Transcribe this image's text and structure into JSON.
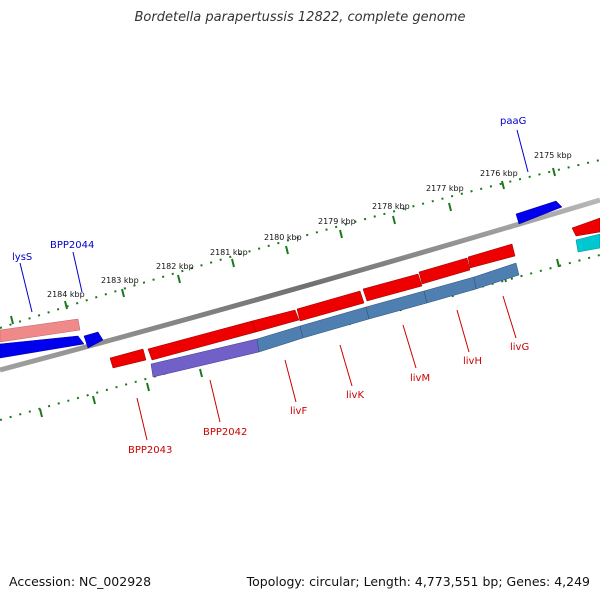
{
  "title": "Bordetella parapertussis 12822, complete genome",
  "footer": {
    "accession": "Accession: NC_002928",
    "summary": "Topology: circular; Length: 4,773,551 bp; Genes: 4,249"
  },
  "colors": {
    "backbone": "#808080",
    "forward_gene": "#0000ee",
    "forward_gene_faded": "#f08080",
    "reverse_gene": "#ee0000",
    "steelblue_gene": "#4f7fb0",
    "purple_gene": "#7060c8",
    "cyan_gene": "#00c8d0",
    "tick": "#1a7a1a",
    "forward_label": "#0000cc",
    "reverse_label": "#cc0000"
  },
  "scale_ticks": [
    "2175 kbp",
    "2176 kbp",
    "2177 kbp",
    "2178 kbp",
    "2179 kbp",
    "2180 kbp",
    "2181 kbp",
    "2182 kbp",
    "2183 kbp",
    "2184 kbp"
  ],
  "forward_labels": [
    "paaG",
    "BPP2044",
    "lysS"
  ],
  "reverse_labels": [
    "livG",
    "livH",
    "livM",
    "livK",
    "livF",
    "BPP2042",
    "BPP2043"
  ]
}
